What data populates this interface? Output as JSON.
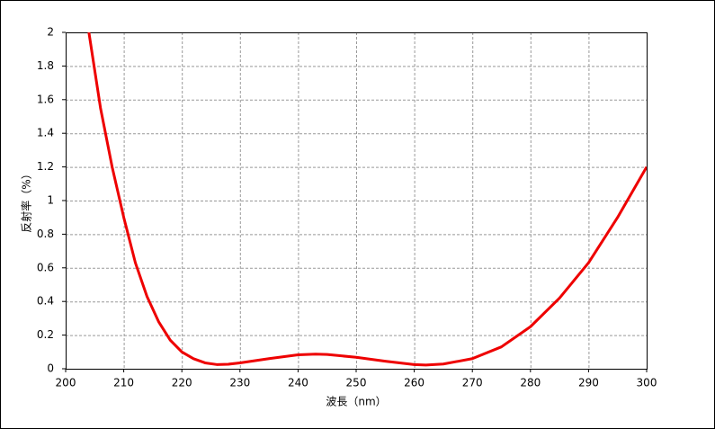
{
  "chart_data": {
    "type": "line",
    "x_label": "波長（nm）",
    "y_label": "反射率（%）",
    "x": [
      204,
      206,
      208,
      210,
      212,
      214,
      216,
      218,
      220,
      222,
      224,
      226,
      228,
      230,
      235,
      240,
      243,
      245,
      250,
      255,
      260,
      262,
      265,
      270,
      275,
      280,
      285,
      290,
      295,
      300
    ],
    "series": [
      {
        "color": "#ee0000",
        "values": [
          2.0,
          1.55,
          1.2,
          0.9,
          0.63,
          0.43,
          0.28,
          0.17,
          0.1,
          0.06,
          0.035,
          0.025,
          0.027,
          0.035,
          0.06,
          0.083,
          0.087,
          0.085,
          0.068,
          0.045,
          0.025,
          0.022,
          0.028,
          0.06,
          0.13,
          0.25,
          0.42,
          0.63,
          0.9,
          1.2
        ]
      }
    ],
    "xlim": [
      200,
      300
    ],
    "xticks": [
      200,
      210,
      220,
      230,
      240,
      250,
      260,
      270,
      280,
      290,
      300
    ],
    "ylim": [
      0,
      2
    ],
    "yticks": [
      0,
      0.2,
      0.4,
      0.6,
      0.8,
      1,
      1.2,
      1.4,
      1.6,
      1.8,
      2
    ],
    "grid": true
  }
}
